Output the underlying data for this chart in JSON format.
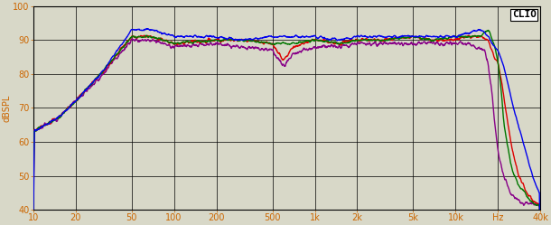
{
  "title": "CLIO",
  "ylabel": "dBSPL",
  "xlabel_ticks": [
    10,
    20,
    50,
    100,
    200,
    500,
    1000,
    2000,
    5000,
    10000,
    20000,
    40000
  ],
  "xlabel_labels": [
    "10",
    "20",
    "50",
    "100",
    "200",
    "500",
    "1k",
    "2k",
    "5k",
    "10k",
    "Hz",
    "40k"
  ],
  "ylim": [
    40,
    100
  ],
  "xlim": [
    10,
    40000
  ],
  "yticks": [
    40,
    50,
    60,
    70,
    80,
    90,
    100
  ],
  "background_color": "#d8d8c8",
  "grid_color": "#000000",
  "colors": {
    "0deg": "#0000ee",
    "15deg": "#dd0000",
    "30deg": "#007700",
    "45deg": "#880088"
  },
  "line_width": 1.0
}
